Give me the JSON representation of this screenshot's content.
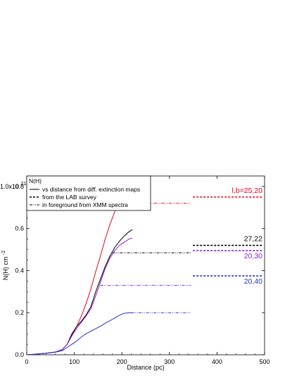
{
  "chart_data": {
    "type": "line",
    "xlabel": "Distance (pc)",
    "ylabel": "N(H) cm",
    "ylabel_exponent": "-2",
    "xlim": [
      0,
      500
    ],
    "ylim": [
      0,
      0.85
    ],
    "x_ticks": [
      0,
      100,
      200,
      300,
      400,
      500
    ],
    "y_ticks": [
      0.0,
      0.2,
      0.4,
      0.6,
      0.8
    ],
    "y_tick_labels": [
      "0.0",
      "0.2",
      "0.4",
      "0.6",
      "0.8"
    ],
    "y_top_label_mantissa": "1.0x10",
    "y_top_label_exponent": "21",
    "legend": {
      "title": "N(H)",
      "entries": [
        {
          "style": "solid",
          "label": "vs distance from diff. extinction maps"
        },
        {
          "style": "dashed",
          "label": "from the LAB survey"
        },
        {
          "style": "dashdotdot",
          "label": "in foreground from XMM spectra"
        }
      ]
    },
    "series": [
      {
        "name": "l,b=25,20",
        "color": "#e8001c",
        "curve": [
          [
            0,
            0
          ],
          [
            20,
            0.003
          ],
          [
            40,
            0.007
          ],
          [
            60,
            0.013
          ],
          [
            75,
            0.025
          ],
          [
            85,
            0.05
          ],
          [
            95,
            0.095
          ],
          [
            105,
            0.135
          ],
          [
            115,
            0.185
          ],
          [
            125,
            0.245
          ],
          [
            135,
            0.315
          ],
          [
            145,
            0.395
          ],
          [
            155,
            0.47
          ],
          [
            165,
            0.55
          ],
          [
            175,
            0.62
          ],
          [
            185,
            0.68
          ],
          [
            195,
            0.73
          ],
          [
            205,
            0.77
          ],
          [
            215,
            0.805
          ],
          [
            222,
            0.82
          ]
        ],
        "lab": 0.75,
        "xmm": 0.72,
        "xmm_range": [
          190,
          345
        ],
        "lab_range": [
          345,
          500
        ]
      },
      {
        "name": "27,22",
        "color": "#000000",
        "curve": [
          [
            0,
            0
          ],
          [
            20,
            0.003
          ],
          [
            40,
            0.007
          ],
          [
            60,
            0.013
          ],
          [
            75,
            0.025
          ],
          [
            85,
            0.05
          ],
          [
            95,
            0.1
          ],
          [
            105,
            0.135
          ],
          [
            115,
            0.16
          ],
          [
            125,
            0.19
          ],
          [
            135,
            0.23
          ],
          [
            145,
            0.3
          ],
          [
            155,
            0.36
          ],
          [
            165,
            0.42
          ],
          [
            175,
            0.47
          ],
          [
            185,
            0.51
          ],
          [
            195,
            0.54
          ],
          [
            205,
            0.565
          ],
          [
            215,
            0.585
          ],
          [
            222,
            0.595
          ]
        ],
        "lab": 0.52,
        "xmm": 0.485,
        "xmm_range": [
          180,
          345
        ],
        "lab_range": [
          345,
          500
        ]
      },
      {
        "name": "20,30",
        "color": "#8a1fd1",
        "curve": [
          [
            0,
            0
          ],
          [
            20,
            0.003
          ],
          [
            40,
            0.007
          ],
          [
            60,
            0.013
          ],
          [
            75,
            0.025
          ],
          [
            85,
            0.05
          ],
          [
            95,
            0.09
          ],
          [
            105,
            0.125
          ],
          [
            115,
            0.155
          ],
          [
            125,
            0.185
          ],
          [
            135,
            0.22
          ],
          [
            145,
            0.28
          ],
          [
            155,
            0.345
          ],
          [
            165,
            0.41
          ],
          [
            175,
            0.46
          ],
          [
            185,
            0.495
          ],
          [
            195,
            0.52
          ],
          [
            205,
            0.535
          ],
          [
            215,
            0.55
          ],
          [
            222,
            0.555
          ]
        ],
        "lab": 0.495,
        "xmm": 0.33,
        "xmm_range": [
          155,
          345
        ],
        "lab_range": [
          345,
          500
        ]
      },
      {
        "name": "20,40",
        "color": "#2233cc",
        "curve": [
          [
            0,
            0
          ],
          [
            20,
            0.003
          ],
          [
            40,
            0.007
          ],
          [
            60,
            0.012
          ],
          [
            75,
            0.02
          ],
          [
            85,
            0.035
          ],
          [
            95,
            0.05
          ],
          [
            105,
            0.065
          ],
          [
            115,
            0.085
          ],
          [
            125,
            0.1
          ],
          [
            135,
            0.112
          ],
          [
            145,
            0.124
          ],
          [
            155,
            0.136
          ],
          [
            165,
            0.15
          ],
          [
            175,
            0.162
          ],
          [
            185,
            0.175
          ],
          [
            195,
            0.188
          ],
          [
            205,
            0.197
          ],
          [
            215,
            0.2
          ],
          [
            222,
            0.2
          ]
        ],
        "lab": 0.375,
        "xmm": 0.2,
        "xmm_range": [
          220,
          345
        ],
        "lab_range": [
          345,
          500
        ]
      }
    ]
  }
}
